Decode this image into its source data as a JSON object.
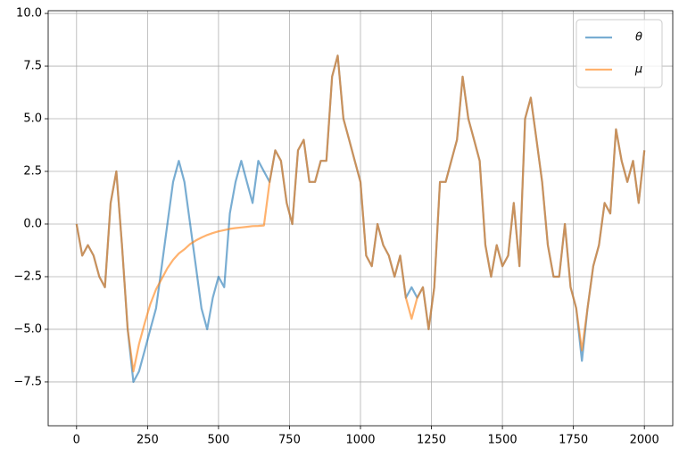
{
  "chart_data": {
    "type": "line",
    "x": [
      0,
      20,
      40,
      60,
      80,
      100,
      120,
      140,
      160,
      180,
      200,
      220,
      240,
      260,
      280,
      300,
      320,
      340,
      360,
      380,
      400,
      420,
      440,
      460,
      480,
      500,
      520,
      540,
      560,
      580,
      600,
      620,
      640,
      660,
      680,
      700,
      720,
      740,
      760,
      780,
      800,
      820,
      840,
      860,
      880,
      900,
      920,
      940,
      960,
      980,
      1000,
      1020,
      1040,
      1060,
      1080,
      1100,
      1120,
      1140,
      1160,
      1180,
      1200,
      1220,
      1240,
      1260,
      1280,
      1300,
      1320,
      1340,
      1360,
      1380,
      1400,
      1420,
      1440,
      1460,
      1480,
      1500,
      1520,
      1540,
      1560,
      1580,
      1600,
      1620,
      1640,
      1660,
      1680,
      1700,
      1720,
      1740,
      1760,
      1780,
      1800,
      1820,
      1840,
      1860,
      1880,
      1900,
      1920,
      1940,
      1960,
      1980,
      2000
    ],
    "series": [
      {
        "name": "θ",
        "color": "#1f77b4",
        "values": [
          0,
          -1.5,
          -1,
          -1.5,
          -2.5,
          -3,
          1,
          2.5,
          -1,
          -5,
          -7.5,
          -7,
          -6,
          -5,
          -4,
          -2,
          0,
          2,
          3,
          2,
          0,
          -2,
          -4,
          -5,
          -3.5,
          -2.5,
          -3,
          0.5,
          2,
          3,
          2,
          1,
          3,
          2.5,
          2,
          3.5,
          3,
          1,
          0,
          3.5,
          4,
          2,
          2,
          3,
          3,
          7,
          8,
          5,
          4,
          3,
          2,
          -1.5,
          -2,
          0,
          -1,
          -1.5,
          -2.5,
          -1.5,
          -3.5,
          -3,
          -3.5,
          -3,
          -5,
          -3,
          2,
          2,
          3,
          4,
          7,
          5,
          4,
          3,
          -1,
          -2.5,
          -1,
          -2,
          -1.5,
          1,
          -2,
          5,
          6,
          4,
          2,
          -1,
          -2.5,
          -2.5,
          0,
          -3,
          -4,
          -6.5,
          -4,
          -2,
          -1,
          1,
          0.5,
          4.5,
          3,
          2,
          3,
          1,
          3.5
        ]
      },
      {
        "name": "μ",
        "color": "#ff7f0e",
        "values": [
          0,
          -1.5,
          -1,
          -1.5,
          -2.5,
          -3,
          1,
          2.5,
          -1,
          -5,
          -7,
          -5.7,
          -4.7,
          -3.8,
          -3.1,
          -2.6,
          -2.1,
          -1.7,
          -1.4,
          -1.2,
          -0.95,
          -0.78,
          -0.64,
          -0.52,
          -0.43,
          -0.35,
          -0.29,
          -0.23,
          -0.19,
          -0.16,
          -0.13,
          -0.1,
          -0.09,
          -0.07,
          2,
          3.5,
          3,
          1,
          0,
          3.5,
          4,
          2,
          2,
          3,
          3,
          7,
          8,
          5,
          4,
          3,
          2,
          -1.5,
          -2,
          0,
          -1,
          -1.5,
          -2.5,
          -1.5,
          -3.5,
          -4.5,
          -3.5,
          -3,
          -5,
          -3,
          2,
          2,
          3,
          4,
          7,
          5,
          4,
          3,
          -1,
          -2.5,
          -1,
          -2,
          -1.5,
          1,
          -2,
          5,
          6,
          4,
          2,
          -1,
          -2.5,
          -2.5,
          0,
          -3,
          -4,
          -6,
          -4,
          -2,
          -1,
          1,
          0.5,
          4.5,
          3,
          2,
          3,
          1,
          3.5
        ]
      }
    ],
    "xlim": [
      -100,
      2100
    ],
    "ylim": [
      -9.58,
      10.13
    ],
    "xticks": [
      0,
      250,
      500,
      750,
      1000,
      1250,
      1500,
      1750,
      2000
    ],
    "yticks": [
      {
        "value": -7.5,
        "label": "−7.5"
      },
      {
        "value": -5,
        "label": "−5.0"
      },
      {
        "value": -2.5,
        "label": "−2.5"
      },
      {
        "value": 0,
        "label": "0.0"
      },
      {
        "value": 2.5,
        "label": "2.5"
      },
      {
        "value": 5,
        "label": "5.0"
      },
      {
        "value": 7.5,
        "label": "7.5"
      },
      {
        "value": 10,
        "label": "10.0"
      }
    ],
    "grid": true,
    "legend": "upper right"
  }
}
